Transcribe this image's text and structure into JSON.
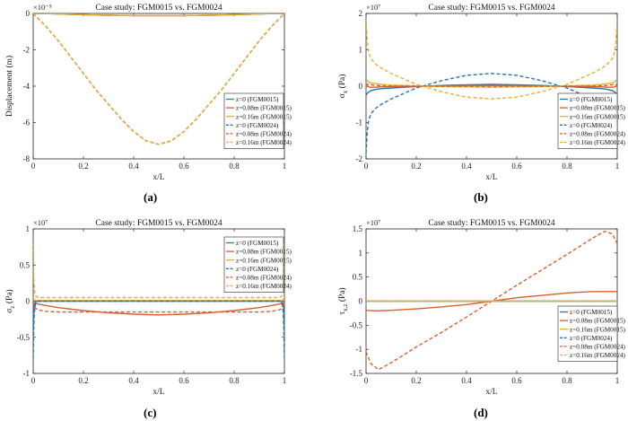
{
  "figure": {
    "panel_labels": [
      "(a)",
      "(b)",
      "(c)",
      "(d)"
    ]
  },
  "legend_entries": [
    "z=0 (FGM0015)",
    "z=0.08m (FGM0015)",
    "z=0.16m (FGM0015)",
    "z=0 (FGM0024)",
    "z=0.08m (FGM0024)",
    "z=0.16m (FGM0024)"
  ],
  "series_styles": [
    {
      "color": "#1f77b4",
      "dash": "solid"
    },
    {
      "color": "#d95f2b",
      "dash": "solid"
    },
    {
      "color": "#e6b030",
      "dash": "solid"
    },
    {
      "color": "#1f77b4",
      "dash": "dashed"
    },
    {
      "color": "#d95f2b",
      "dash": "dashed"
    },
    {
      "color": "#e6b030",
      "dash": "dashed"
    }
  ],
  "chart_data": [
    {
      "type": "line",
      "title": "Case study: FGM0015 vs. FGM0024",
      "xlabel": "x/L",
      "ylabel": "Displacement (m)",
      "exponent": "×10⁻⁵",
      "xlim": [
        0,
        1
      ],
      "ylim": [
        -8,
        0
      ],
      "xticks": [
        0,
        0.2,
        0.4,
        0.6,
        0.8,
        1
      ],
      "xtick_labels": [
        "0",
        "0.2",
        "0.4",
        "0.6",
        "0.8",
        "1"
      ],
      "yticks": [
        -8,
        -6,
        -4,
        -2,
        0
      ],
      "ytick_labels": [
        "-8",
        "-6",
        "-4",
        "-2",
        "0"
      ],
      "legend_position": "right",
      "x": [
        0,
        0.05,
        0.1,
        0.15,
        0.2,
        0.25,
        0.3,
        0.35,
        0.4,
        0.45,
        0.5,
        0.55,
        0.6,
        0.65,
        0.7,
        0.75,
        0.8,
        0.85,
        0.9,
        0.95,
        1
      ],
      "series": [
        {
          "name": "z=0 (FGM0015)",
          "values": [
            0,
            -0.01,
            -0.03,
            -0.05,
            -0.07,
            -0.09,
            -0.1,
            -0.11,
            -0.12,
            -0.12,
            -0.12,
            -0.12,
            -0.12,
            -0.11,
            -0.1,
            -0.09,
            -0.07,
            -0.05,
            -0.03,
            -0.01,
            0
          ]
        },
        {
          "name": "z=0.08m (FGM0015)",
          "values": [
            0,
            -0.01,
            -0.03,
            -0.05,
            -0.07,
            -0.09,
            -0.1,
            -0.11,
            -0.12,
            -0.12,
            -0.12,
            -0.12,
            -0.12,
            -0.11,
            -0.1,
            -0.09,
            -0.07,
            -0.05,
            -0.03,
            -0.01,
            0
          ]
        },
        {
          "name": "z=0.16m (FGM0015)",
          "values": [
            0,
            -0.01,
            -0.03,
            -0.05,
            -0.07,
            -0.09,
            -0.1,
            -0.11,
            -0.12,
            -0.12,
            -0.12,
            -0.12,
            -0.12,
            -0.11,
            -0.1,
            -0.09,
            -0.07,
            -0.05,
            -0.03,
            -0.01,
            0
          ]
        },
        {
          "name": "z=0 (FGM0024)",
          "values": [
            0,
            -0.7,
            -1.5,
            -2.4,
            -3.3,
            -4.2,
            -5.0,
            -5.8,
            -6.5,
            -7.0,
            -7.2,
            -7.0,
            -6.5,
            -5.8,
            -5.0,
            -4.2,
            -3.3,
            -2.4,
            -1.5,
            -0.7,
            0
          ]
        },
        {
          "name": "z=0.08m (FGM0024)",
          "values": [
            0,
            -0.7,
            -1.5,
            -2.4,
            -3.3,
            -4.2,
            -5.0,
            -5.8,
            -6.5,
            -7.0,
            -7.2,
            -7.0,
            -6.5,
            -5.8,
            -5.0,
            -4.2,
            -3.3,
            -2.4,
            -1.5,
            -0.7,
            0
          ]
        },
        {
          "name": "z=0.16m (FGM0024)",
          "values": [
            0,
            -0.7,
            -1.5,
            -2.4,
            -3.3,
            -4.2,
            -5.0,
            -5.8,
            -6.5,
            -7.0,
            -7.2,
            -7.0,
            -6.5,
            -5.8,
            -5.0,
            -4.2,
            -3.3,
            -2.4,
            -1.5,
            -0.7,
            0
          ]
        }
      ]
    },
    {
      "type": "line",
      "title": "Case study: FGM0015 vs. FGM0024",
      "xlabel": "x/L",
      "ylabel": "σx (Pa)",
      "exponent": "×10⁷",
      "xlim": [
        0,
        1
      ],
      "ylim": [
        -2,
        2
      ],
      "xticks": [
        0,
        0.2,
        0.4,
        0.6,
        0.8,
        1
      ],
      "xtick_labels": [
        "0",
        "0.2",
        "0.4",
        "0.6",
        "0.8",
        "1"
      ],
      "yticks": [
        -2,
        -1,
        0,
        1,
        2
      ],
      "ytick_labels": [
        "-2",
        "-1",
        "0",
        "1",
        "2"
      ],
      "legend_position": "bottom-right",
      "x": [
        0,
        0.005,
        0.01,
        0.02,
        0.04,
        0.06,
        0.1,
        0.15,
        0.2,
        0.3,
        0.4,
        0.5,
        0.6,
        0.7,
        0.8,
        0.85,
        0.9,
        0.94,
        0.96,
        0.98,
        0.99,
        0.995,
        1
      ],
      "series": [
        {
          "name": "z=0 (FGM0015)",
          "values": [
            -0.25,
            -0.2,
            -0.16,
            -0.12,
            -0.09,
            -0.07,
            -0.05,
            -0.03,
            -0.01,
            0.02,
            0.04,
            0.05,
            0.04,
            0.02,
            -0.01,
            -0.03,
            -0.05,
            -0.07,
            -0.09,
            -0.12,
            -0.16,
            -0.2,
            -0.25
          ]
        },
        {
          "name": "z=0.08m (FGM0015)",
          "values": [
            0.0,
            0.0,
            -0.02,
            -0.03,
            -0.03,
            -0.02,
            -0.01,
            0.0,
            0.0,
            0.01,
            0.02,
            0.02,
            0.02,
            0.01,
            0.0,
            0.0,
            -0.01,
            -0.02,
            -0.03,
            -0.03,
            -0.02,
            0.0,
            0.0
          ]
        },
        {
          "name": "z=0.16m (FGM0015)",
          "values": [
            0.2,
            0.15,
            0.12,
            0.09,
            0.07,
            0.05,
            0.03,
            0.02,
            0.01,
            -0.01,
            -0.02,
            -0.03,
            -0.02,
            -0.01,
            0.01,
            0.02,
            0.03,
            0.05,
            0.07,
            0.09,
            0.12,
            0.15,
            0.2
          ]
        },
        {
          "name": "z=0 (FGM0024)",
          "values": [
            -1.85,
            -1.25,
            -0.95,
            -0.75,
            -0.6,
            -0.5,
            -0.35,
            -0.2,
            -0.05,
            0.15,
            0.3,
            0.35,
            0.3,
            0.15,
            -0.05,
            -0.2,
            -0.35,
            -0.5,
            -0.6,
            -0.75,
            -0.95,
            -1.25,
            -1.85
          ]
        },
        {
          "name": "z=0.08m (FGM0024)",
          "values": [
            0.0,
            0.05,
            0.05,
            0.04,
            0.02,
            0.01,
            0.0,
            0.0,
            0.0,
            0.0,
            0.0,
            0.0,
            0.0,
            0.0,
            0.0,
            0.0,
            0.0,
            0.01,
            0.02,
            0.04,
            0.05,
            0.05,
            0.0
          ]
        },
        {
          "name": "z=0.16m (FGM0024)",
          "values": [
            1.85,
            1.25,
            0.95,
            0.75,
            0.6,
            0.5,
            0.35,
            0.2,
            0.05,
            -0.15,
            -0.3,
            -0.35,
            -0.3,
            -0.15,
            0.05,
            0.2,
            0.35,
            0.5,
            0.6,
            0.75,
            0.95,
            1.25,
            1.85
          ]
        }
      ]
    },
    {
      "type": "line",
      "title": "Case study: FGM0015 vs. FGM0024",
      "xlabel": "x/L",
      "ylabel": "σz (Pa)",
      "exponent": "×10⁷",
      "xlim": [
        0,
        1
      ],
      "ylim": [
        -1,
        1
      ],
      "xticks": [
        0,
        0.2,
        0.4,
        0.6,
        0.8,
        1
      ],
      "xtick_labels": [
        "0",
        "0.2",
        "0.4",
        "0.6",
        "0.8",
        "1"
      ],
      "yticks": [
        -1,
        -0.5,
        0,
        0.5,
        1
      ],
      "ytick_labels": [
        "-1",
        "-0.5",
        "0",
        "0.5",
        "1"
      ],
      "legend_position": "top-right",
      "x": [
        0,
        0.003,
        0.006,
        0.01,
        0.02,
        0.05,
        0.1,
        0.2,
        0.3,
        0.4,
        0.5,
        0.6,
        0.7,
        0.8,
        0.9,
        0.95,
        0.98,
        0.99,
        0.994,
        0.997,
        1
      ],
      "series": [
        {
          "name": "z=0 (FGM0015)",
          "values": [
            -0.45,
            -0.1,
            -0.03,
            -0.01,
            0.0,
            0.0,
            0.0,
            0.0,
            0.0,
            0.0,
            0.0,
            0.0,
            0.0,
            0.0,
            0.0,
            0.0,
            0.0,
            -0.01,
            -0.03,
            -0.1,
            -0.45
          ]
        },
        {
          "name": "z=0.08m (FGM0015)",
          "values": [
            0.0,
            -0.02,
            -0.03,
            -0.03,
            -0.04,
            -0.06,
            -0.09,
            -0.13,
            -0.16,
            -0.18,
            -0.19,
            -0.18,
            -0.16,
            -0.13,
            -0.09,
            -0.06,
            -0.04,
            -0.03,
            -0.03,
            -0.02,
            0.0
          ]
        },
        {
          "name": "z=0.16m (FGM0015)",
          "values": [
            0.05,
            0.03,
            0.02,
            0.01,
            0.01,
            0.01,
            0.01,
            0.01,
            0.01,
            0.01,
            0.01,
            0.01,
            0.01,
            0.01,
            0.01,
            0.01,
            0.01,
            0.01,
            0.02,
            0.03,
            0.05
          ]
        },
        {
          "name": "z=0 (FGM0024)",
          "values": [
            -0.8,
            -0.3,
            -0.1,
            -0.03,
            0.0,
            0.0,
            0.0,
            0.0,
            0.0,
            0.0,
            0.0,
            0.0,
            0.0,
            0.0,
            0.0,
            0.0,
            0.0,
            -0.03,
            -0.1,
            -0.3,
            -0.8
          ]
        },
        {
          "name": "z=0.08m (FGM0024)",
          "values": [
            0.0,
            -0.05,
            -0.08,
            -0.1,
            -0.12,
            -0.14,
            -0.15,
            -0.15,
            -0.15,
            -0.15,
            -0.15,
            -0.15,
            -0.15,
            -0.15,
            -0.15,
            -0.14,
            -0.12,
            -0.1,
            -0.08,
            -0.05,
            0.0
          ]
        },
        {
          "name": "z=0.16m (FGM0024)",
          "values": [
            0.8,
            0.3,
            0.12,
            0.07,
            0.05,
            0.05,
            0.05,
            0.05,
            0.05,
            0.05,
            0.05,
            0.05,
            0.05,
            0.05,
            0.05,
            0.05,
            0.05,
            0.07,
            0.12,
            0.3,
            0.8
          ]
        }
      ]
    },
    {
      "type": "line",
      "title": "Case study: FGM0015 vs. FGM0024",
      "xlabel": "x/L",
      "ylabel": "τxz (Pa)",
      "exponent": "×10⁷",
      "xlim": [
        0,
        1
      ],
      "ylim": [
        -1.5,
        1.5
      ],
      "xticks": [
        0,
        0.2,
        0.4,
        0.6,
        0.8,
        1
      ],
      "xtick_labels": [
        "0",
        "0.2",
        "0.4",
        "0.6",
        "0.8",
        "1"
      ],
      "yticks": [
        -1.5,
        -1,
        -0.5,
        0,
        0.5,
        1,
        1.5
      ],
      "ytick_labels": [
        "-1.5",
        "-1",
        "-0.5",
        "0",
        "0.5",
        "1",
        "1.5"
      ],
      "legend_position": "bottom-right",
      "x": [
        0,
        0.02,
        0.05,
        0.1,
        0.2,
        0.3,
        0.4,
        0.5,
        0.6,
        0.7,
        0.8,
        0.9,
        0.95,
        0.98,
        1
      ],
      "series": [
        {
          "name": "z=0 (FGM0015)",
          "values": [
            0,
            0,
            0,
            0,
            0,
            0,
            0,
            0,
            0,
            0,
            0,
            0,
            0,
            0,
            0
          ]
        },
        {
          "name": "z=0.08m (FGM0015)",
          "values": [
            -0.19,
            -0.2,
            -0.2,
            -0.19,
            -0.16,
            -0.12,
            -0.07,
            0.0,
            0.07,
            0.12,
            0.17,
            0.2,
            0.2,
            0.2,
            0.2
          ]
        },
        {
          "name": "z=0.16m (FGM0015)",
          "values": [
            0,
            0,
            0,
            0,
            0,
            0,
            0,
            0,
            0,
            0,
            0,
            0,
            0,
            0,
            0
          ]
        },
        {
          "name": "z=0 (FGM0024)",
          "values": [
            0,
            0,
            0,
            0,
            0,
            0,
            0,
            0,
            0,
            0,
            0,
            0,
            0,
            0,
            0
          ]
        },
        {
          "name": "z=0.08m (FGM0024)",
          "values": [
            -1.05,
            -1.3,
            -1.42,
            -1.28,
            -0.95,
            -0.65,
            -0.33,
            0.0,
            0.33,
            0.65,
            0.97,
            1.3,
            1.45,
            1.4,
            1.2
          ]
        },
        {
          "name": "z=0.16m (FGM0024)",
          "values": [
            0,
            0,
            0,
            0,
            0,
            0,
            0,
            0,
            0,
            0,
            0,
            0,
            0,
            0,
            0
          ]
        }
      ]
    }
  ]
}
